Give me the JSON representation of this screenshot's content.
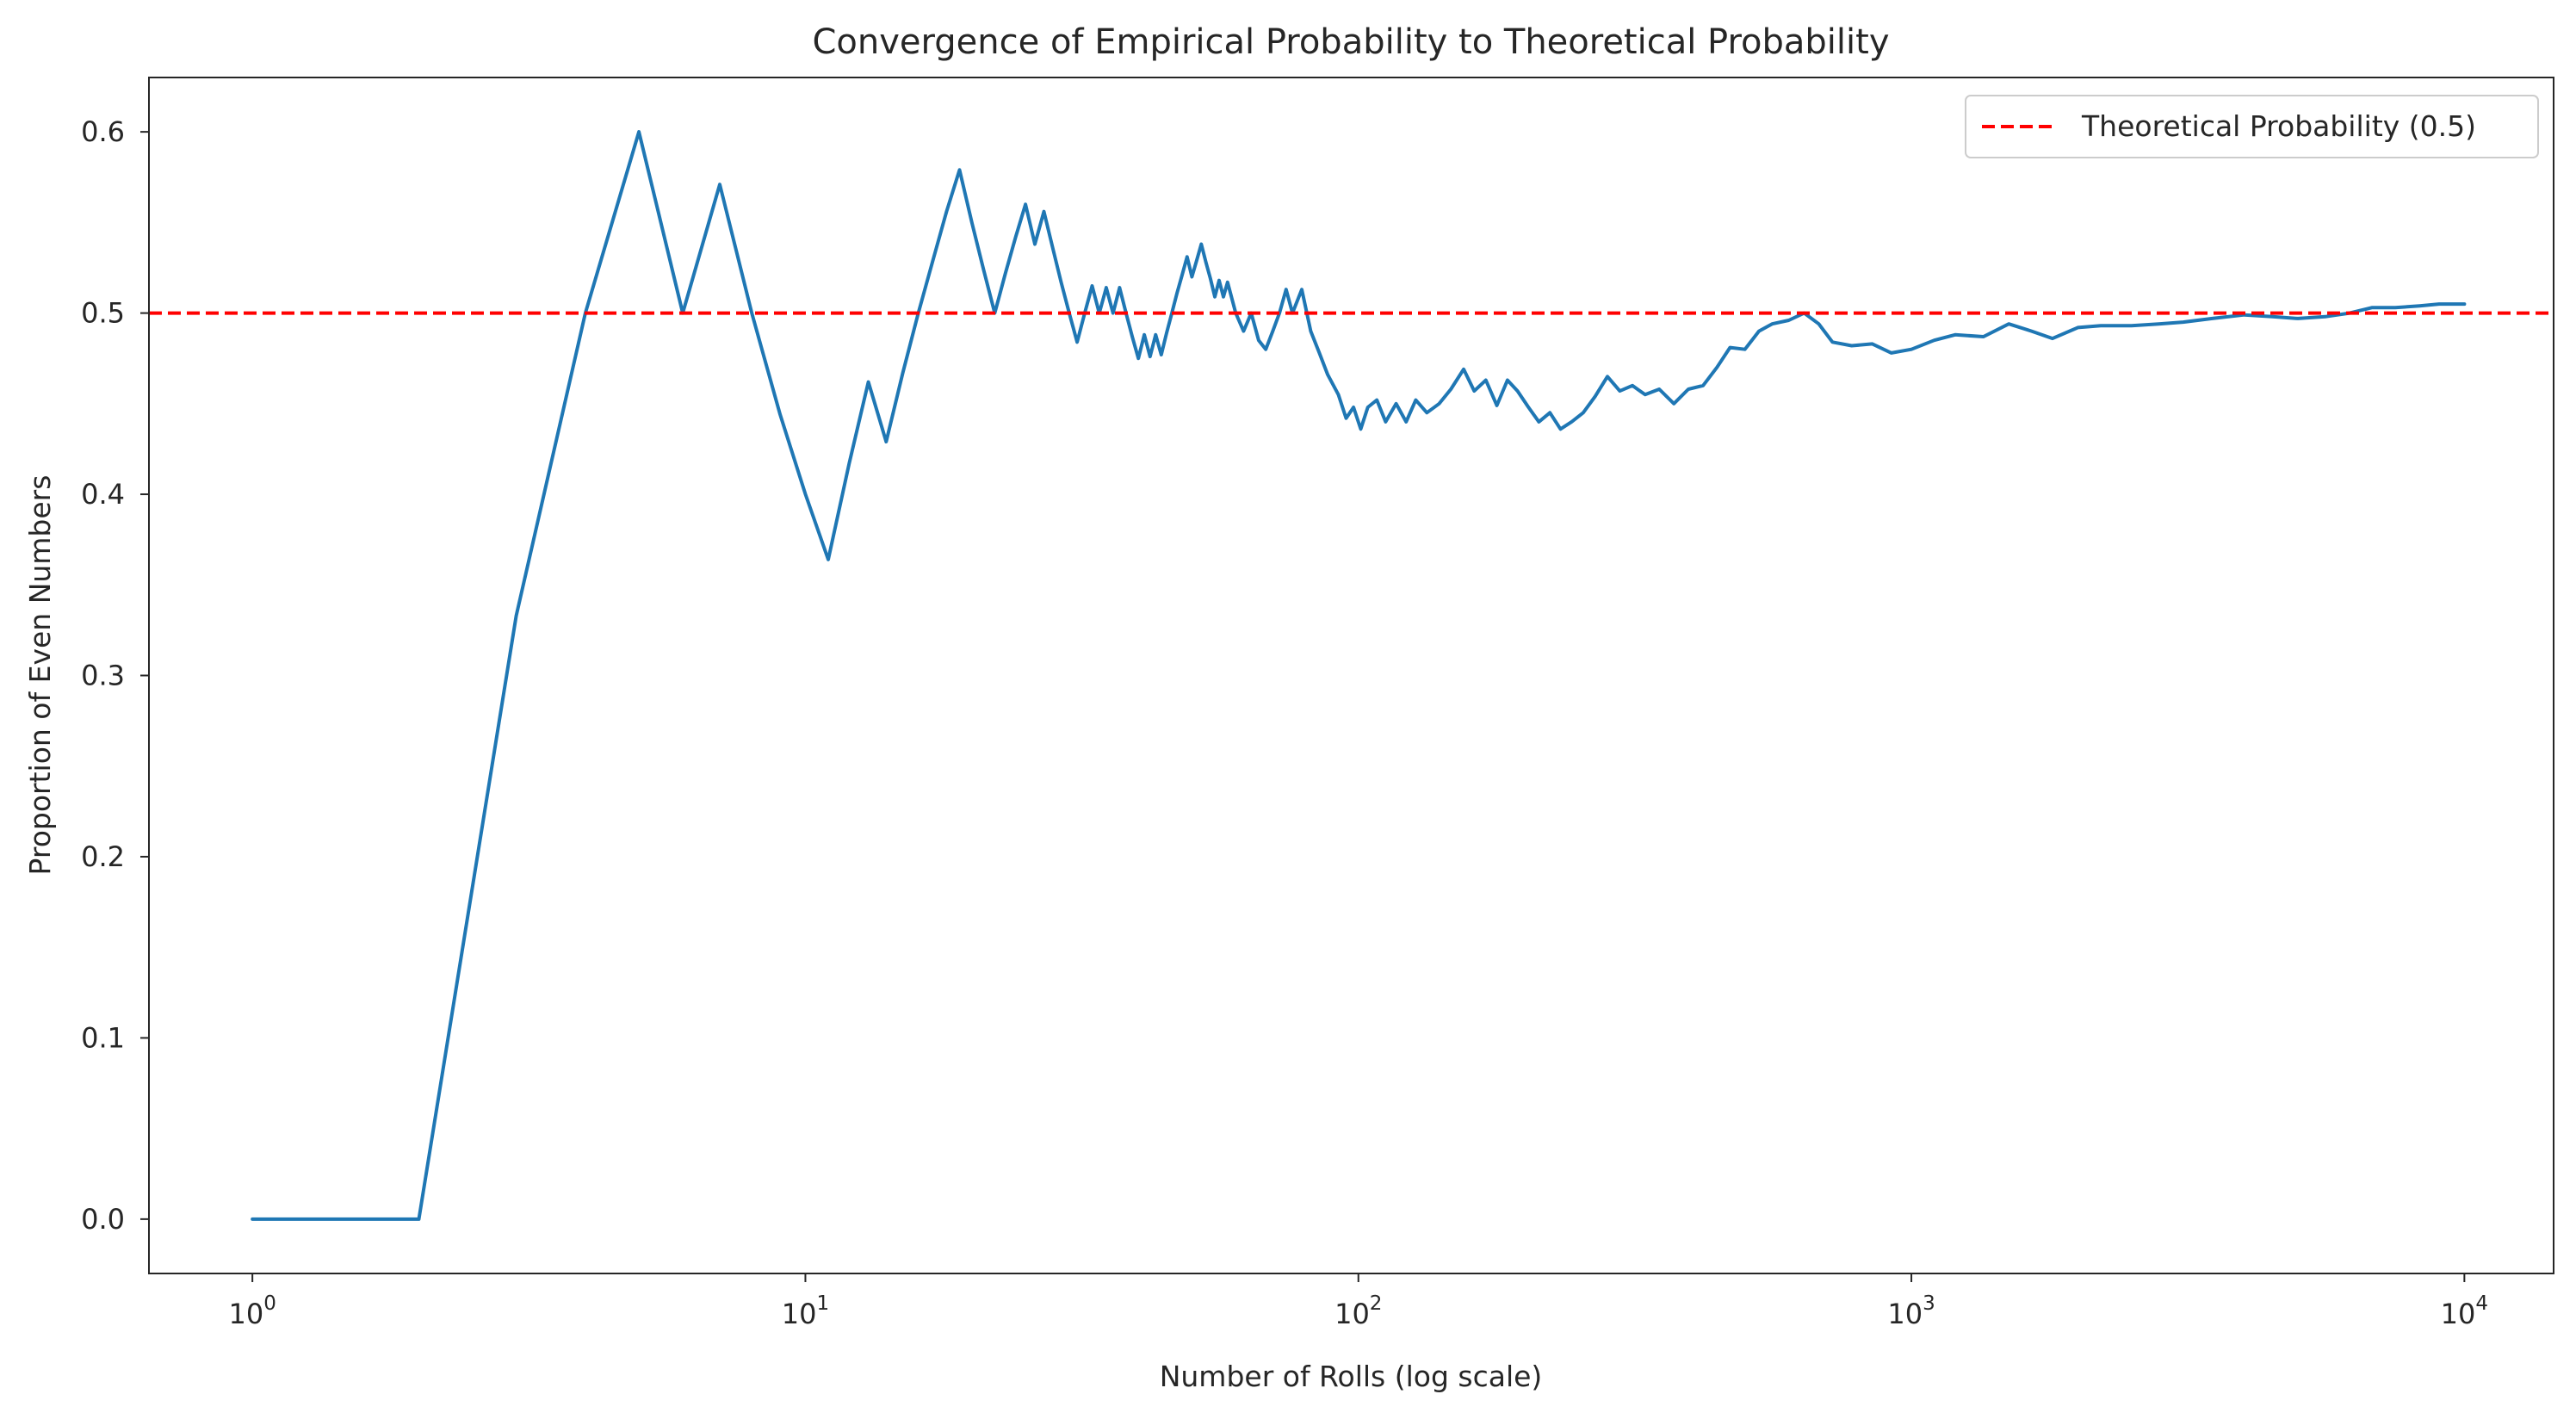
{
  "chart_data": {
    "type": "line",
    "title": "Convergence of Empirical Probability to Theoretical Probability",
    "xlabel": "Number of Rolls (log scale)",
    "ylabel": "Proportion of Even Numbers",
    "xscale": "log",
    "xlim": [
      0.65,
      14500
    ],
    "ylim": [
      -0.03,
      0.63
    ],
    "x_ticks": [
      1,
      10,
      100,
      1000,
      10000
    ],
    "x_tick_labels": [
      {
        "base": "10",
        "exp": "0"
      },
      {
        "base": "10",
        "exp": "1"
      },
      {
        "base": "10",
        "exp": "2"
      },
      {
        "base": "10",
        "exp": "3"
      },
      {
        "base": "10",
        "exp": "4"
      }
    ],
    "y_ticks": [
      0.0,
      0.1,
      0.2,
      0.3,
      0.4,
      0.5,
      0.6
    ],
    "y_tick_labels": [
      "0.0",
      "0.1",
      "0.2",
      "0.3",
      "0.4",
      "0.5",
      "0.6"
    ],
    "grid": false,
    "legend_position": "top-right",
    "series": [
      {
        "name": "",
        "color": "#1f77b4",
        "style": "solid",
        "points": [
          [
            1,
            0.0
          ],
          [
            2,
            0.0
          ],
          [
            3,
            0.333
          ],
          [
            4,
            0.5
          ],
          [
            5,
            0.6
          ],
          [
            6,
            0.5
          ],
          [
            7,
            0.571
          ],
          [
            8,
            0.5
          ],
          [
            9,
            0.444
          ],
          [
            10,
            0.4
          ],
          [
            11,
            0.364
          ],
          [
            12,
            0.417
          ],
          [
            13,
            0.462
          ],
          [
            14,
            0.429
          ],
          [
            15,
            0.467
          ],
          [
            16,
            0.5
          ],
          [
            17,
            0.529
          ],
          [
            18,
            0.556
          ],
          [
            19,
            0.579
          ],
          [
            20,
            0.55
          ],
          [
            21,
            0.524
          ],
          [
            22,
            0.5
          ],
          [
            23,
            0.522
          ],
          [
            24,
            0.542
          ],
          [
            25,
            0.56
          ],
          [
            26,
            0.538
          ],
          [
            27,
            0.556
          ],
          [
            28,
            0.536
          ],
          [
            29,
            0.517
          ],
          [
            30,
            0.5
          ],
          [
            31,
            0.484
          ],
          [
            32,
            0.5
          ],
          [
            33,
            0.515
          ],
          [
            34,
            0.5
          ],
          [
            35,
            0.514
          ],
          [
            36,
            0.5
          ],
          [
            37,
            0.514
          ],
          [
            38,
            0.5
          ],
          [
            39,
            0.487
          ],
          [
            40,
            0.475
          ],
          [
            41,
            0.488
          ],
          [
            42,
            0.476
          ],
          [
            43,
            0.488
          ],
          [
            44,
            0.477
          ],
          [
            45,
            0.489
          ],
          [
            46,
            0.5
          ],
          [
            47,
            0.511
          ],
          [
            48,
            0.521
          ],
          [
            49,
            0.531
          ],
          [
            50,
            0.52
          ],
          [
            51,
            0.529
          ],
          [
            52,
            0.538
          ],
          [
            53,
            0.528
          ],
          [
            54,
            0.519
          ],
          [
            55,
            0.509
          ],
          [
            56,
            0.518
          ],
          [
            57,
            0.509
          ],
          [
            58,
            0.517
          ],
          [
            60,
            0.5
          ],
          [
            62,
            0.49
          ],
          [
            64,
            0.5
          ],
          [
            66,
            0.485
          ],
          [
            68,
            0.48
          ],
          [
            70,
            0.49
          ],
          [
            72,
            0.5
          ],
          [
            74,
            0.513
          ],
          [
            76,
            0.5
          ],
          [
            79,
            0.513
          ],
          [
            82,
            0.49
          ],
          [
            85,
            0.478
          ],
          [
            88,
            0.466
          ],
          [
            92,
            0.455
          ],
          [
            95,
            0.442
          ],
          [
            98,
            0.448
          ],
          [
            101,
            0.436
          ],
          [
            104,
            0.448
          ],
          [
            108,
            0.452
          ],
          [
            112,
            0.44
          ],
          [
            117,
            0.45
          ],
          [
            122,
            0.44
          ],
          [
            127,
            0.452
          ],
          [
            133,
            0.445
          ],
          [
            140,
            0.45
          ],
          [
            147,
            0.458
          ],
          [
            155,
            0.469
          ],
          [
            162,
            0.457
          ],
          [
            170,
            0.463
          ],
          [
            178,
            0.449
          ],
          [
            186,
            0.463
          ],
          [
            194,
            0.457
          ],
          [
            203,
            0.448
          ],
          [
            212,
            0.44
          ],
          [
            222,
            0.445
          ],
          [
            232,
            0.436
          ],
          [
            243,
            0.44
          ],
          [
            255,
            0.445
          ],
          [
            268,
            0.454
          ],
          [
            282,
            0.465
          ],
          [
            297,
            0.457
          ],
          [
            313,
            0.46
          ],
          [
            330,
            0.455
          ],
          [
            350,
            0.458
          ],
          [
            372,
            0.45
          ],
          [
            395,
            0.458
          ],
          [
            420,
            0.46
          ],
          [
            445,
            0.47
          ],
          [
            470,
            0.481
          ],
          [
            500,
            0.48
          ],
          [
            530,
            0.49
          ],
          [
            560,
            0.494
          ],
          [
            600,
            0.496
          ],
          [
            640,
            0.5
          ],
          [
            680,
            0.494
          ],
          [
            720,
            0.484
          ],
          [
            780,
            0.482
          ],
          [
            850,
            0.483
          ],
          [
            920,
            0.478
          ],
          [
            1000,
            0.48
          ],
          [
            1100,
            0.485
          ],
          [
            1200,
            0.488
          ],
          [
            1350,
            0.487
          ],
          [
            1500,
            0.494
          ],
          [
            1650,
            0.49
          ],
          [
            1800,
            0.486
          ],
          [
            2000,
            0.492
          ],
          [
            2200,
            0.493
          ],
          [
            2500,
            0.493
          ],
          [
            2800,
            0.494
          ],
          [
            3100,
            0.495
          ],
          [
            3500,
            0.497
          ],
          [
            4000,
            0.499
          ],
          [
            4500,
            0.498
          ],
          [
            5000,
            0.497
          ],
          [
            5600,
            0.498
          ],
          [
            6200,
            0.5
          ],
          [
            6800,
            0.503
          ],
          [
            7500,
            0.503
          ],
          [
            8300,
            0.504
          ],
          [
            9000,
            0.505
          ],
          [
            10000,
            0.505
          ]
        ]
      },
      {
        "name": "Theoretical Probability (0.5)",
        "color": "#ff0000",
        "style": "dashed",
        "hline": 0.5
      }
    ]
  }
}
